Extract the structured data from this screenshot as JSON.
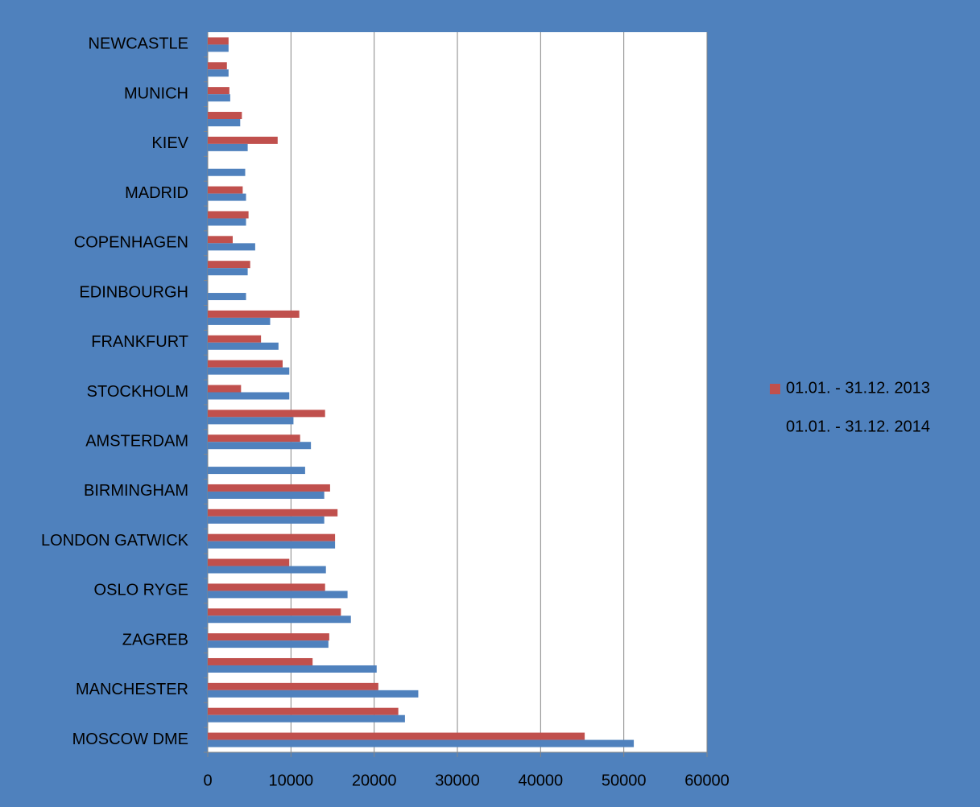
{
  "chart_data": {
    "type": "barh",
    "categories": [
      "MOSCOW DME",
      null,
      "MANCHESTER",
      null,
      "ZAGREB",
      null,
      "OSLO RYGE",
      null,
      "LONDON GATWICK",
      null,
      "BIRMINGHAM",
      null,
      "AMSTERDAM",
      null,
      "STOCKHOLM",
      null,
      "FRANKFURT",
      null,
      "EDINBOURGH",
      null,
      "COPENHAGEN",
      null,
      "MADRID",
      null,
      "KIEV",
      null,
      "MUNICH",
      null,
      "NEWCASTLE"
    ],
    "series": [
      {
        "name": "01.01. - 31.12. 2013",
        "color": "#c0504d",
        "values": [
          45300,
          22900,
          20500,
          12600,
          14600,
          16000,
          14100,
          9800,
          15300,
          15600,
          14700,
          null,
          11100,
          14100,
          4000,
          9000,
          6400,
          11000,
          null,
          5100,
          3000,
          4900,
          4200,
          null,
          8400,
          4100,
          2600,
          2300,
          2500
        ]
      },
      {
        "name": "01.01. - 31.12. 2014",
        "color": "#4f81bd",
        "values": [
          51200,
          23700,
          25300,
          20300,
          14500,
          17200,
          16800,
          14200,
          15300,
          14000,
          14000,
          11700,
          12400,
          10300,
          9800,
          9800,
          8500,
          7500,
          4600,
          4800,
          5700,
          4600,
          4600,
          4500,
          4800,
          3900,
          2700,
          2500,
          2500
        ]
      }
    ],
    "xlim": [
      0,
      60000
    ],
    "xticks": [
      0,
      10000,
      20000,
      30000,
      40000,
      50000,
      60000
    ],
    "grid": true,
    "legend": "right"
  }
}
